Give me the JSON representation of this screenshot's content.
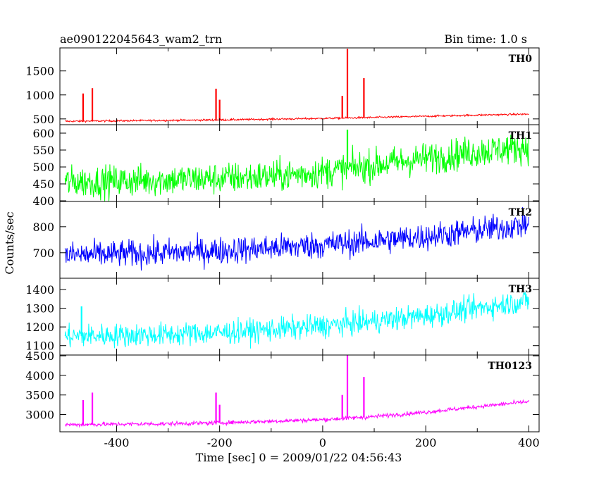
{
  "header": {
    "title": "ae090122045643_wam2_trn",
    "bin_time": "Bin time: 1.0 s"
  },
  "axes": {
    "xlabel": "Time [sec] 0 = 2009/01/22 04:56:43",
    "ylabel": "Counts/sec",
    "x_ticks": [
      "-400",
      "-200",
      "0",
      "200",
      "400"
    ]
  },
  "chart_data": [
    {
      "type": "line",
      "name": "TH0",
      "color": "#ff0000",
      "xlim": [
        -510,
        420
      ],
      "ylim": [
        380,
        1980
      ],
      "yticks": [
        500,
        1000,
        1500
      ],
      "x": [
        -500,
        -400,
        -300,
        -200,
        -100,
        0,
        100,
        200,
        300,
        400
      ],
      "values": [
        450,
        460,
        470,
        480,
        495,
        510,
        530,
        555,
        580,
        600
      ],
      "noise": 18,
      "spikes": [
        {
          "x": -465,
          "y": 1030
        },
        {
          "x": -447,
          "y": 1140
        },
        {
          "x": -207,
          "y": 1130
        },
        {
          "x": -200,
          "y": 900
        },
        {
          "x": 38,
          "y": 980
        },
        {
          "x": 48,
          "y": 1960
        },
        {
          "x": 80,
          "y": 1350
        }
      ]
    },
    {
      "type": "line",
      "name": "TH1",
      "color": "#00ff00",
      "xlim": [
        -510,
        420
      ],
      "ylim": [
        398,
        625
      ],
      "yticks": [
        400,
        450,
        500,
        550,
        600
      ],
      "x": [
        -500,
        -400,
        -300,
        -200,
        -100,
        0,
        100,
        200,
        300,
        400
      ],
      "values": [
        455,
        458,
        462,
        466,
        472,
        485,
        505,
        525,
        545,
        560
      ],
      "noise": 45,
      "spikes": [
        {
          "x": 48,
          "y": 610
        }
      ]
    },
    {
      "type": "line",
      "name": "TH2",
      "color": "#0000ff",
      "xlim": [
        -510,
        420
      ],
      "ylim": [
        602,
        897
      ],
      "yticks": [
        700,
        800
      ],
      "x": [
        -500,
        -400,
        -300,
        -200,
        -100,
        0,
        100,
        200,
        300,
        400
      ],
      "values": [
        690,
        695,
        700,
        708,
        718,
        730,
        745,
        762,
        785,
        810
      ],
      "noise": 50,
      "spikes": []
    },
    {
      "type": "line",
      "name": "TH3",
      "color": "#00ffff",
      "xlim": [
        -510,
        420
      ],
      "ylim": [
        1050,
        1460
      ],
      "yticks": [
        1100,
        1200,
        1300,
        1400
      ],
      "x": [
        -500,
        -400,
        -300,
        -200,
        -100,
        0,
        100,
        200,
        300,
        400
      ],
      "values": [
        1150,
        1155,
        1160,
        1170,
        1185,
        1205,
        1230,
        1260,
        1300,
        1340
      ],
      "noise": 60,
      "spikes": [
        {
          "x": -468,
          "y": 1310
        }
      ]
    },
    {
      "type": "line",
      "name": "TH0123",
      "color": "#ff00ff",
      "xlim": [
        -510,
        420
      ],
      "ylim": [
        2560,
        4520
      ],
      "yticks": [
        3000,
        3500,
        4000,
        4500
      ],
      "x": [
        -500,
        -400,
        -300,
        -200,
        -100,
        0,
        100,
        200,
        300,
        400
      ],
      "values": [
        2740,
        2755,
        2765,
        2790,
        2830,
        2870,
        2950,
        3060,
        3200,
        3330
      ],
      "noise": 50,
      "spikes": [
        {
          "x": -465,
          "y": 3370
        },
        {
          "x": -447,
          "y": 3560
        },
        {
          "x": -207,
          "y": 3560
        },
        {
          "x": -200,
          "y": 3250
        },
        {
          "x": 38,
          "y": 3500
        },
        {
          "x": 48,
          "y": 4520
        },
        {
          "x": 80,
          "y": 3960
        }
      ]
    }
  ]
}
